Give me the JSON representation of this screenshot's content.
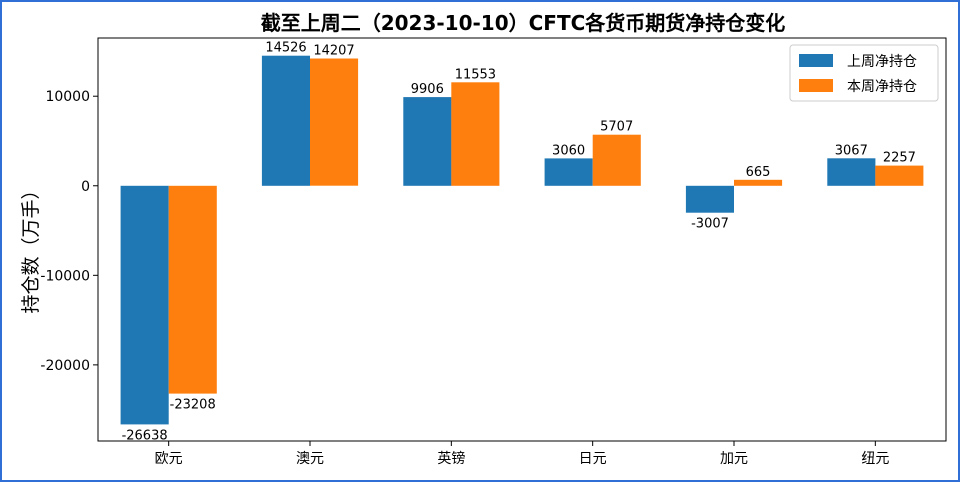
{
  "chart_data": {
    "type": "bar",
    "title": "截至上周二（2023-10-10）CFTC各货币期货净持仓变化",
    "xlabel": "",
    "ylabel": "持仓数（万手）",
    "categories": [
      "欧元",
      "澳元",
      "英镑",
      "日元",
      "加元",
      "纽元"
    ],
    "series": [
      {
        "name": "上周净持仓",
        "color": "#1f77b4",
        "values": [
          -26638,
          14526,
          9906,
          3060,
          -3007,
          3067
        ]
      },
      {
        "name": "本周净持仓",
        "color": "#ff7f0e",
        "values": [
          -23208,
          14207,
          11553,
          5707,
          665,
          2257
        ]
      }
    ],
    "ylim": [
      -28500,
      16500
    ],
    "yticks": [
      -20000,
      -10000,
      0,
      10000
    ],
    "grid": false,
    "legend_position": "top-right"
  }
}
